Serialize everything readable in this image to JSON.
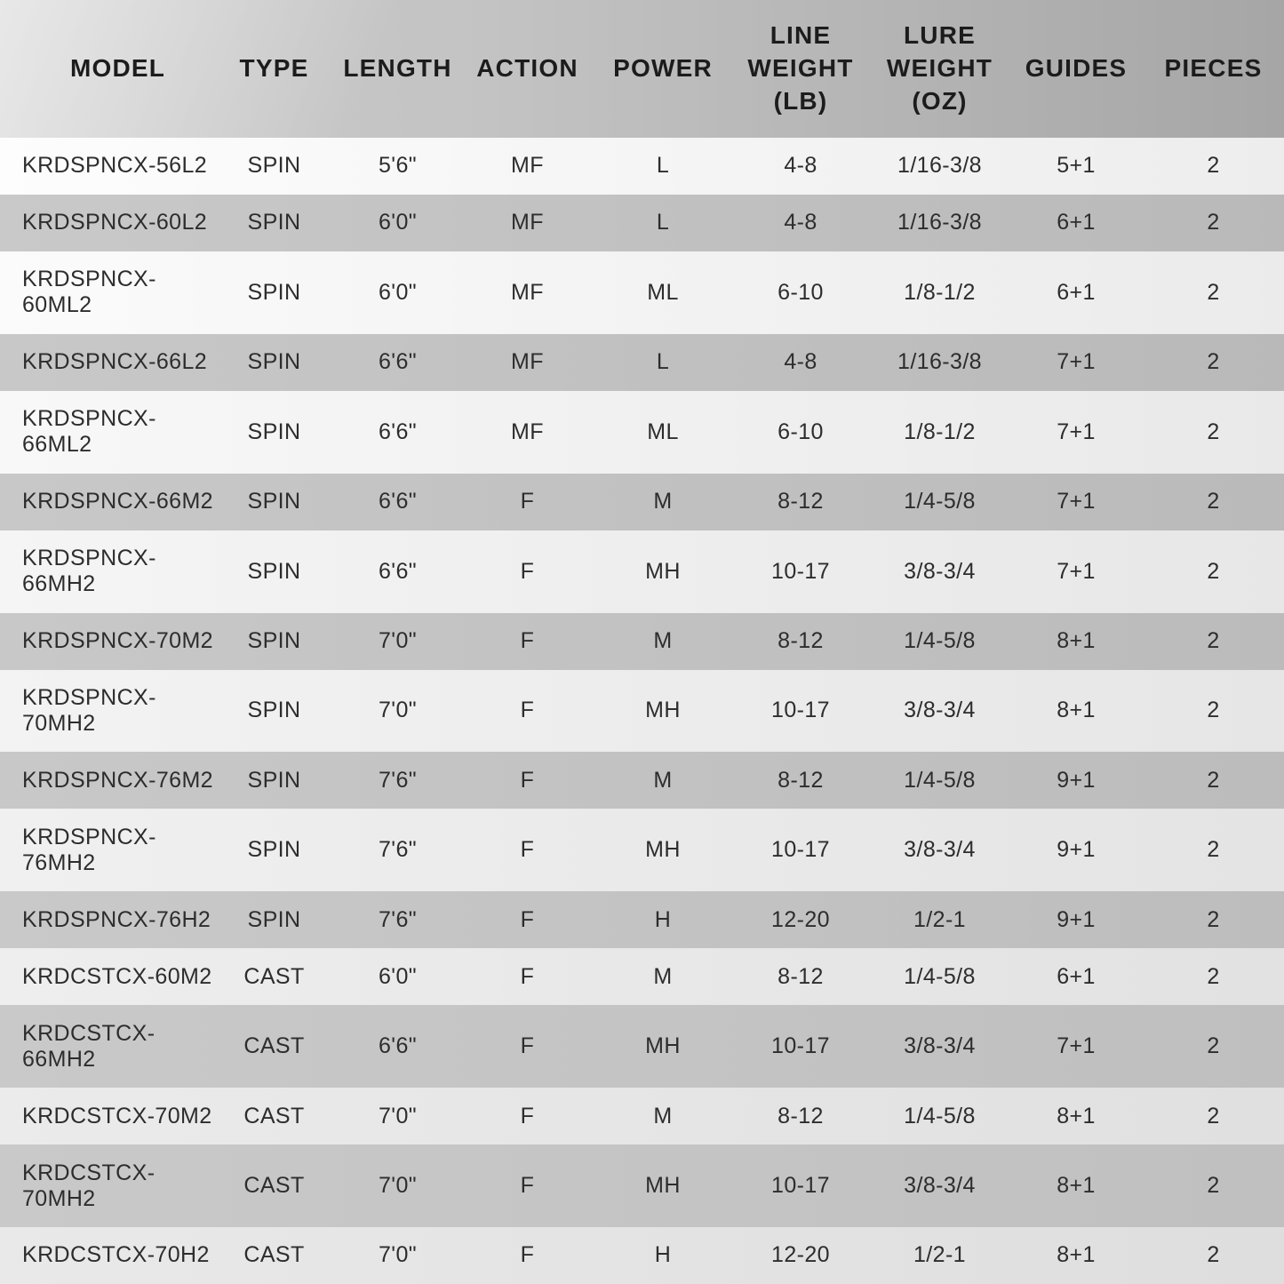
{
  "colors": {
    "header_text": "#1c1c1c",
    "body_text": "#2d2d2d",
    "stripe_light": "#f5f5f5",
    "stripe_dark": "#c8c8c8",
    "header_gradient_start": "#cccccc",
    "header_gradient_end": "#a6a6a6"
  },
  "chart_data": {
    "type": "table",
    "title": "Fishing rod specification table",
    "legend_position": "none",
    "grid": "striped-rows",
    "columns": [
      {
        "id": "model",
        "label": "MODEL"
      },
      {
        "id": "type",
        "label": "TYPE"
      },
      {
        "id": "length",
        "label": "LENGTH"
      },
      {
        "id": "action",
        "label": "ACTION"
      },
      {
        "id": "power",
        "label": "POWER"
      },
      {
        "id": "line-weight",
        "label": "LINE WEIGHT (LB)"
      },
      {
        "id": "lure-weight",
        "label": "LURE WEIGHT (OZ)"
      },
      {
        "id": "guides",
        "label": "GUIDES"
      },
      {
        "id": "pieces",
        "label": "PIECES"
      }
    ],
    "rows": [
      [
        "KRDSPNCX-56L2",
        "SPIN",
        "5'6\"",
        "MF",
        "L",
        "4-8",
        "1/16-3/8",
        "5+1",
        "2"
      ],
      [
        "KRDSPNCX-60L2",
        "SPIN",
        "6'0\"",
        "MF",
        "L",
        "4-8",
        "1/16-3/8",
        "6+1",
        "2"
      ],
      [
        "KRDSPNCX-60ML2",
        "SPIN",
        "6'0\"",
        "MF",
        "ML",
        "6-10",
        "1/8-1/2",
        "6+1",
        "2"
      ],
      [
        "KRDSPNCX-66L2",
        "SPIN",
        "6'6\"",
        "MF",
        "L",
        "4-8",
        "1/16-3/8",
        "7+1",
        "2"
      ],
      [
        "KRDSPNCX-66ML2",
        "SPIN",
        "6'6\"",
        "MF",
        "ML",
        "6-10",
        "1/8-1/2",
        "7+1",
        "2"
      ],
      [
        "KRDSPNCX-66M2",
        "SPIN",
        "6'6\"",
        "F",
        "M",
        "8-12",
        "1/4-5/8",
        "7+1",
        "2"
      ],
      [
        "KRDSPNCX-66MH2",
        "SPIN",
        "6'6\"",
        "F",
        "MH",
        "10-17",
        "3/8-3/4",
        "7+1",
        "2"
      ],
      [
        "KRDSPNCX-70M2",
        "SPIN",
        "7'0\"",
        "F",
        "M",
        "8-12",
        "1/4-5/8",
        "8+1",
        "2"
      ],
      [
        "KRDSPNCX-70MH2",
        "SPIN",
        "7'0\"",
        "F",
        "MH",
        "10-17",
        "3/8-3/4",
        "8+1",
        "2"
      ],
      [
        "KRDSPNCX-76M2",
        "SPIN",
        "7'6\"",
        "F",
        "M",
        "8-12",
        "1/4-5/8",
        "9+1",
        "2"
      ],
      [
        "KRDSPNCX-76MH2",
        "SPIN",
        "7'6\"",
        "F",
        "MH",
        "10-17",
        "3/8-3/4",
        "9+1",
        "2"
      ],
      [
        "KRDSPNCX-76H2",
        "SPIN",
        "7'6\"",
        "F",
        "H",
        "12-20",
        "1/2-1",
        "9+1",
        "2"
      ],
      [
        "KRDCSTCX-60M2",
        "CAST",
        "6'0\"",
        "F",
        "M",
        "8-12",
        "1/4-5/8",
        "6+1",
        "2"
      ],
      [
        "KRDCSTCX-66MH2",
        "CAST",
        "6'6\"",
        "F",
        "MH",
        "10-17",
        "3/8-3/4",
        "7+1",
        "2"
      ],
      [
        "KRDCSTCX-70M2",
        "CAST",
        "7'0\"",
        "F",
        "M",
        "8-12",
        "1/4-5/8",
        "8+1",
        "2"
      ],
      [
        "KRDCSTCX-70MH2",
        "CAST",
        "7'0\"",
        "F",
        "MH",
        "10-17",
        "3/8-3/4",
        "8+1",
        "2"
      ],
      [
        "KRDCSTCX-70H2",
        "CAST",
        "7'0\"",
        "F",
        "H",
        "12-20",
        "1/2-1",
        "8+1",
        "2"
      ]
    ]
  }
}
